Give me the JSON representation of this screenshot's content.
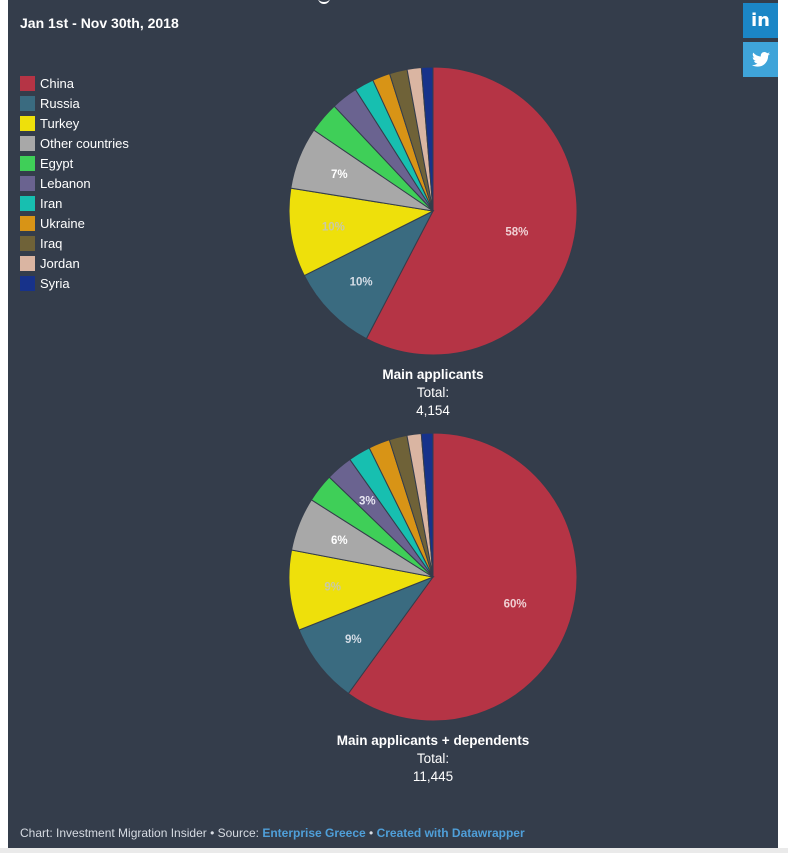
{
  "header": {
    "date_range": "Jan 1st - Nov 30th, 2018"
  },
  "legend": [
    {
      "label": "China",
      "color": "#b53445"
    },
    {
      "label": "Russia",
      "color": "#3a6b80"
    },
    {
      "label": "Turkey",
      "color": "#eee00b"
    },
    {
      "label": "Other countries",
      "color": "#a8a8a8"
    },
    {
      "label": "Egypt",
      "color": "#3fcf58"
    },
    {
      "label": "Lebanon",
      "color": "#6a6390"
    },
    {
      "label": "Iran",
      "color": "#17bfb0"
    },
    {
      "label": "Ukraine",
      "color": "#d89416"
    },
    {
      "label": "Iraq",
      "color": "#6f6238"
    },
    {
      "label": "Jordan",
      "color": "#dab5a2"
    },
    {
      "label": "Syria",
      "color": "#17328a"
    }
  ],
  "chart_data": [
    {
      "type": "pie",
      "title": "Main applicants",
      "total_label": "Total:",
      "total_value": "4,154",
      "slices": [
        {
          "label": "China",
          "value": 58,
          "text": "58%",
          "text_color": "#f0d0d4"
        },
        {
          "label": "Russia",
          "value": 10,
          "text": "10%",
          "text_color": "#d5dde6"
        },
        {
          "label": "Turkey",
          "value": 10,
          "text": "10%",
          "text_color": "#c9c9a9"
        },
        {
          "label": "Other countries",
          "value": 7,
          "text": "7%",
          "text_color": "#ffffff"
        },
        {
          "label": "Egypt",
          "value": 3.5,
          "text": ""
        },
        {
          "label": "Lebanon",
          "value": 3,
          "text": ""
        },
        {
          "label": "Iran",
          "value": 2.2,
          "text": ""
        },
        {
          "label": "Ukraine",
          "value": 2,
          "text": ""
        },
        {
          "label": "Iraq",
          "value": 2,
          "text": ""
        },
        {
          "label": "Jordan",
          "value": 1.6,
          "text": ""
        },
        {
          "label": "Syria",
          "value": 1.3,
          "text": ""
        }
      ]
    },
    {
      "type": "pie",
      "title": "Main applicants + dependents",
      "total_label": "Total:",
      "total_value": "11,445",
      "slices": [
        {
          "label": "China",
          "value": 60,
          "text": "60%",
          "text_color": "#f0d0d4"
        },
        {
          "label": "Russia",
          "value": 9,
          "text": "9%",
          "text_color": "#d5dde6"
        },
        {
          "label": "Turkey",
          "value": 9,
          "text": "9%",
          "text_color": "#c9c9a9"
        },
        {
          "label": "Other countries",
          "value": 6,
          "text": "6%",
          "text_color": "#ffffff"
        },
        {
          "label": "Egypt",
          "value": 3.2,
          "text": ""
        },
        {
          "label": "Lebanon",
          "value": 3,
          "text": "3%",
          "text_color": "#e8e6f2"
        },
        {
          "label": "Iran",
          "value": 2.5,
          "text": ""
        },
        {
          "label": "Ukraine",
          "value": 2.4,
          "text": ""
        },
        {
          "label": "Iraq",
          "value": 2,
          "text": ""
        },
        {
          "label": "Jordan",
          "value": 1.6,
          "text": ""
        },
        {
          "label": "Syria",
          "value": 1.3,
          "text": ""
        }
      ]
    }
  ],
  "footer": {
    "prefix": "Chart: Investment Migration Insider • Source: ",
    "source_link": "Enterprise Greece",
    "separator": " • ",
    "credit_link": "Created with Datawrapper"
  },
  "social": {
    "linkedin_label": "in"
  }
}
